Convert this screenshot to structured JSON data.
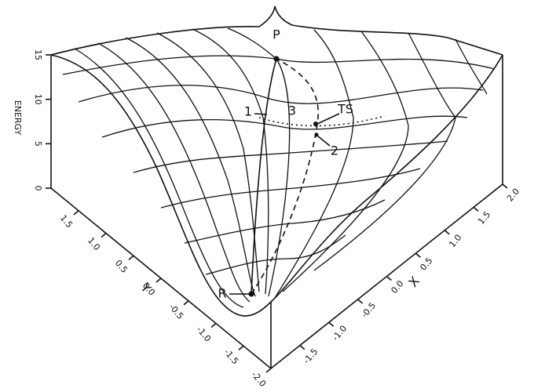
{
  "axes": {
    "energy_label": "ENERGY",
    "energy_ticks": [
      "0",
      "5",
      "10",
      "15"
    ],
    "y_label": "Y",
    "y_ticks": [
      "1.5",
      "1.0",
      "0.5",
      "0.0",
      "-0.5",
      "-1.0",
      "-1.5",
      "-2.0"
    ],
    "x_label": "X",
    "x_ticks": [
      "2.0",
      "1.5",
      "1.0",
      "0.5",
      "0.0",
      "-0.5",
      "-1.0",
      "-1.5"
    ]
  },
  "points": {
    "product": "P",
    "transition_state": "TS",
    "reactant": "R",
    "path_1": "1",
    "path_2": "2",
    "path_3": "3"
  }
}
